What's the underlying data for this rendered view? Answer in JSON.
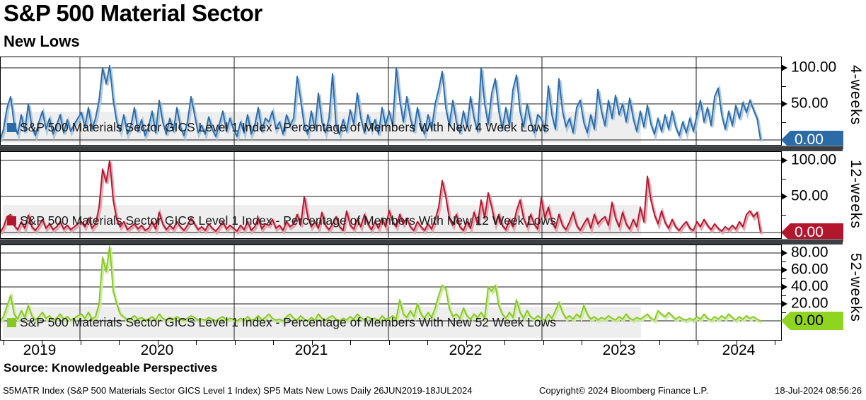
{
  "header": {
    "title": "S&P 500 Material Sector",
    "subtitle": "New Lows"
  },
  "source_line": "Source: Knowledgeable Perspectives",
  "footer": {
    "left": "S5MATR Index (S&P 500 Materials Sector GICS Level 1 Index) SP5 Mats New Lows  Daily 26JUN2019-18JUL2024",
    "center": "Copyright© 2024 Bloomberg Finance L.P.",
    "right": "18-Jul-2024 08:56:26"
  },
  "x_axis": {
    "years": [
      "2019",
      "2020",
      "2021",
      "2022",
      "2023",
      "2024"
    ],
    "year_label_xs": [
      56,
      222,
      440,
      658,
      875,
      1044
    ],
    "gridline_xs": [
      113,
      331,
      549,
      766,
      984
    ]
  },
  "panels": [
    {
      "label": "4-weeks",
      "legend": "S&P 500 Materials Sector GICS Level 1 Index - Percentage of Members With New 4 Week Lows",
      "color": "#2B6CA8",
      "halo": "#A9C4DE",
      "tag": {
        "value": "0.00",
        "bg": "#2B6CA8",
        "fg": "#ffffff"
      },
      "y_ticks": {
        "major": [
          {
            "v": 100,
            "label": "100.00"
          },
          {
            "v": 50,
            "label": "50.00"
          }
        ],
        "minor": [
          75,
          25
        ]
      }
    },
    {
      "label": "12-weeks",
      "legend": "S&P 500 Materials Sector GICS Level 1 Index - Percentage of Members With New 12 Week Lows",
      "color": "#B2172E",
      "halo": "#DEA0AA",
      "tag": {
        "value": "0.00",
        "bg": "#B2172E",
        "fg": "#ffffff"
      },
      "y_ticks": {
        "major": [
          {
            "v": 100,
            "label": "100.00"
          },
          {
            "v": 50,
            "label": "50.00"
          }
        ],
        "minor": [
          75,
          25
        ]
      }
    },
    {
      "label": "52-weeks",
      "legend": "S&P 500 Materials Sector GICS Level 1 Index - Percentage of Members With New 52 Week Lows",
      "color": "#85C922",
      "halo": "#CFE9A2",
      "tag": {
        "value": "0.00",
        "bg": "#8FD41F",
        "fg": "#000000"
      },
      "y_ticks": {
        "major": [
          {
            "v": 80,
            "label": "80.00"
          },
          {
            "v": 60,
            "label": "60.00"
          },
          {
            "v": 40,
            "label": "40.00"
          },
          {
            "v": 20,
            "label": "20.00"
          }
        ],
        "minor": [
          70,
          50,
          30,
          10
        ]
      }
    }
  ],
  "chart_data": [
    {
      "type": "line",
      "title": "4-weeks",
      "x_range": [
        "26JUN2019",
        "18JUL2024"
      ],
      "ylim": [
        0,
        100
      ],
      "yticks": [
        0,
        50,
        100
      ],
      "grid": true,
      "series": [
        {
          "name": "S&P 500 Materials Sector GICS Level 1 Index - Percentage of Members With New 4 Week Lows",
          "values": [
            0,
            15,
            45,
            60,
            22,
            8,
            35,
            12,
            50,
            18,
            6,
            25,
            40,
            15,
            30,
            8,
            20,
            35,
            10,
            28,
            12,
            22,
            30,
            38,
            18,
            45,
            15,
            30,
            55,
            100,
            78,
            103,
            55,
            25,
            12,
            35,
            8,
            20,
            45,
            12,
            28,
            6,
            18,
            40,
            10,
            55,
            25,
            8,
            30,
            12,
            45,
            18,
            6,
            25,
            60,
            35,
            10,
            20,
            8,
            32,
            15,
            5,
            22,
            40,
            12,
            30,
            15,
            5,
            25,
            10,
            35,
            8,
            20,
            45,
            12,
            30,
            25,
            40,
            15,
            25,
            8,
            35,
            20,
            30,
            88,
            55,
            20,
            8,
            40,
            15,
            65,
            25,
            10,
            30,
            92,
            18,
            8,
            28,
            12,
            42,
            22,
            65,
            30,
            10,
            35,
            15,
            28,
            8,
            45,
            20,
            40,
            20,
            100,
            55,
            25,
            60,
            30,
            12,
            45,
            20,
            8,
            35,
            15,
            50,
            70,
            95,
            45,
            20,
            55,
            25,
            10,
            40,
            18,
            60,
            30,
            12,
            100,
            50,
            22,
            65,
            85,
            40,
            15,
            45,
            20,
            70,
            90,
            40,
            18,
            50,
            25,
            10,
            35,
            30,
            12,
            75,
            35,
            15,
            85,
            40,
            18,
            30,
            10,
            45,
            55,
            25,
            10,
            35,
            15,
            70,
            40,
            20,
            55,
            30,
            62,
            35,
            50,
            25,
            58,
            30,
            12,
            40,
            18,
            48,
            22,
            8,
            30,
            12,
            35,
            15,
            40,
            18,
            6,
            25,
            10,
            30,
            12,
            35,
            55,
            25,
            45,
            20,
            60,
            72,
            35,
            15,
            40,
            20,
            48,
            30,
            52,
            38,
            55,
            42,
            30,
            0
          ]
        }
      ]
    },
    {
      "type": "line",
      "title": "12-weeks",
      "x_range": [
        "26JUN2019",
        "18JUL2024"
      ],
      "ylim": [
        0,
        100
      ],
      "yticks": [
        0,
        50,
        100
      ],
      "grid": true,
      "series": [
        {
          "name": "S&P 500 Materials Sector GICS Level 1 Index - Percentage of Members With New 12 Week Lows",
          "values": [
            0,
            8,
            22,
            25,
            10,
            4,
            15,
            6,
            24,
            8,
            3,
            10,
            18,
            6,
            12,
            4,
            8,
            15,
            5,
            10,
            4,
            8,
            12,
            15,
            8,
            20,
            6,
            12,
            35,
            88,
            70,
            100,
            45,
            18,
            8,
            15,
            4,
            8,
            12,
            5,
            10,
            3,
            6,
            15,
            5,
            28,
            12,
            4,
            10,
            5,
            15,
            8,
            3,
            10,
            20,
            12,
            4,
            8,
            3,
            12,
            6,
            2,
            8,
            15,
            5,
            10,
            6,
            2,
            10,
            4,
            15,
            3,
            8,
            20,
            5,
            12,
            10,
            18,
            6,
            10,
            3,
            15,
            8,
            12,
            25,
            10,
            50,
            22,
            8,
            15,
            6,
            28,
            10,
            4,
            12,
            22,
            8,
            3,
            30,
            10,
            5,
            18,
            8,
            25,
            12,
            4,
            15,
            6,
            20,
            8,
            30,
            15,
            8,
            25,
            12,
            20,
            8,
            3,
            15,
            8,
            3,
            12,
            5,
            18,
            35,
            72,
            50,
            20,
            10,
            25,
            8,
            3,
            15,
            6,
            28,
            12,
            45,
            20,
            55,
            35,
            12,
            25,
            10,
            4,
            18,
            8,
            30,
            45,
            20,
            8,
            25,
            12,
            5,
            48,
            20,
            35,
            15,
            6,
            25,
            10,
            4,
            15,
            28,
            10,
            3,
            12,
            20,
            6,
            25,
            12,
            18,
            22,
            10,
            42,
            20,
            8,
            28,
            12,
            5,
            18,
            8,
            35,
            15,
            78,
            45,
            25,
            12,
            30,
            14,
            6,
            18,
            8,
            3,
            10,
            15,
            6,
            3,
            15,
            8,
            18,
            10,
            4,
            12,
            6,
            2,
            8,
            4,
            10,
            5,
            15,
            8,
            25,
            30,
            22,
            28,
            0
          ]
        }
      ]
    },
    {
      "type": "line",
      "title": "52-weeks",
      "x_range": [
        "26JUN2019",
        "18JUL2024"
      ],
      "ylim": [
        0,
        80
      ],
      "yticks": [
        0,
        20,
        40,
        60,
        80
      ],
      "grid": true,
      "series": [
        {
          "name": "S&P 500 Materials Sector GICS Level 1 Index - Percentage of Members With New 52 Week Lows",
          "values": [
            0,
            5,
            18,
            30,
            8,
            2,
            12,
            4,
            18,
            6,
            1,
            5,
            10,
            3,
            6,
            1,
            3,
            8,
            2,
            5,
            1,
            3,
            6,
            8,
            3,
            10,
            2,
            5,
            20,
            75,
            58,
            88,
            35,
            20,
            8,
            5,
            1,
            3,
            6,
            2,
            4,
            1,
            2,
            5,
            1,
            8,
            3,
            1,
            4,
            2,
            5,
            2,
            1,
            3,
            6,
            4,
            1,
            2,
            1,
            4,
            2,
            0,
            3,
            5,
            1,
            3,
            2,
            0,
            3,
            1,
            5,
            1,
            2,
            6,
            1,
            4,
            8,
            3,
            1,
            2,
            0,
            5,
            8,
            3,
            1,
            6,
            2,
            0,
            4,
            1,
            8,
            3,
            1,
            4,
            6,
            2,
            0,
            3,
            1,
            5,
            2,
            8,
            4,
            1,
            5,
            2,
            3,
            0,
            6,
            2,
            3,
            6,
            2,
            25,
            8,
            4,
            12,
            5,
            20,
            8,
            3,
            10,
            4,
            15,
            30,
            42,
            38,
            15,
            5,
            8,
            3,
            15,
            6,
            2,
            8,
            4,
            10,
            3,
            40,
            35,
            42,
            18,
            8,
            3,
            10,
            4,
            25,
            10,
            3,
            12,
            5,
            2,
            6,
            3,
            1,
            8,
            3,
            12,
            22,
            10,
            3,
            6,
            2,
            8,
            4,
            18,
            8,
            2,
            5,
            1,
            4,
            2,
            6,
            3,
            1,
            5,
            2,
            8,
            3,
            1,
            4,
            2,
            5,
            8,
            3,
            1,
            12,
            8,
            5,
            10,
            6,
            2,
            5,
            2,
            1,
            3,
            1,
            5,
            2,
            8,
            3,
            1,
            5,
            2,
            6,
            3,
            8,
            4,
            1,
            5,
            2,
            6,
            3,
            5,
            2,
            0
          ]
        }
      ]
    }
  ]
}
